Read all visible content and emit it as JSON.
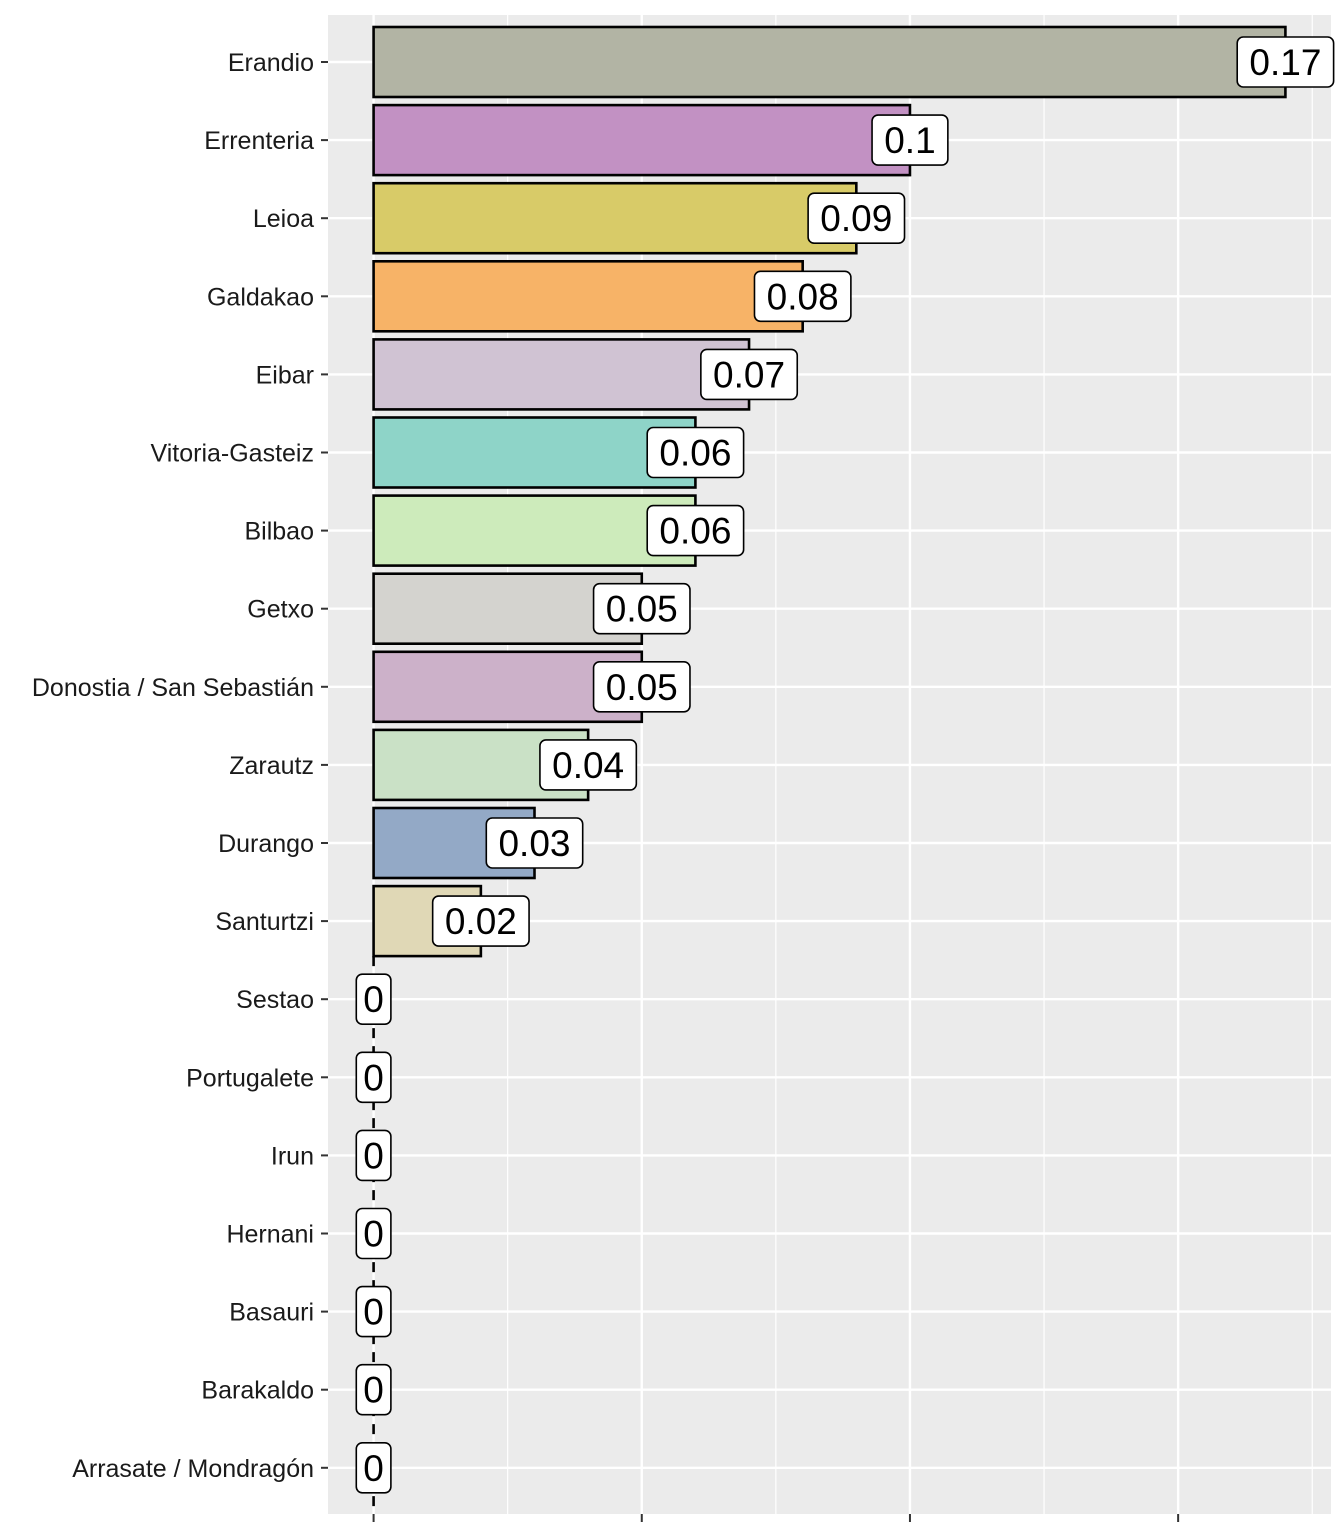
{
  "chart_data": {
    "type": "bar",
    "orientation": "horizontal",
    "title": "",
    "xlabel": "",
    "ylabel": "",
    "xlim": [
      -0.0085,
      0.1785
    ],
    "x_major_ticks": [
      0,
      0.05,
      0.1,
      0.15
    ],
    "x_minor_grid": [
      0.025,
      0.075,
      0.125,
      0.175
    ],
    "grid": true,
    "categories": [
      "Erandio",
      "Errenteria",
      "Leioa",
      "Galdakao",
      "Eibar",
      "Vitoria-Gasteiz",
      "Bilbao",
      "Getxo",
      "Donostia / San Sebastián",
      "Zarautz",
      "Durango",
      "Santurtzi",
      "Sestao",
      "Portugalete",
      "Irun",
      "Hernani",
      "Basauri",
      "Barakaldo",
      "Arrasate / Mondragón"
    ],
    "values": [
      0.17,
      0.1,
      0.09,
      0.08,
      0.07,
      0.06,
      0.06,
      0.05,
      0.05,
      0.04,
      0.03,
      0.02,
      0,
      0,
      0,
      0,
      0,
      0,
      0
    ],
    "raw_values": [
      0.17,
      0.1,
      0.09,
      0.08,
      0.07,
      0.06,
      0.06,
      0.05,
      0.05,
      0.04,
      0.03,
      0.02,
      0,
      0,
      0,
      0,
      0,
      0,
      0
    ],
    "data_labels": [
      "0.17",
      "0.1",
      "0.09",
      "0.08",
      "0.07",
      "0.06",
      "0.06",
      "0.05",
      "0.05",
      "0.04",
      "0.03",
      "0.02",
      "0",
      "0",
      "0",
      "0",
      "0",
      "0",
      "0"
    ],
    "colors": [
      "#b2b4a4",
      "#c291c3",
      "#d8cb68",
      "#f7b367",
      "#d0c3d3",
      "#8ed4c8",
      "#cdebbb",
      "#d4d3cf",
      "#ccb1c9",
      "#cae1c6",
      "#93a9c6",
      "#e0d8b6",
      "#d0d0d0",
      "#d0d0d0",
      "#d0d0d0",
      "#d0d0d0",
      "#d0d0d0",
      "#d0d0d0",
      "#d0d0d0"
    ],
    "panel_background": "#ebebeb",
    "grid_color": "#ffffff"
  }
}
